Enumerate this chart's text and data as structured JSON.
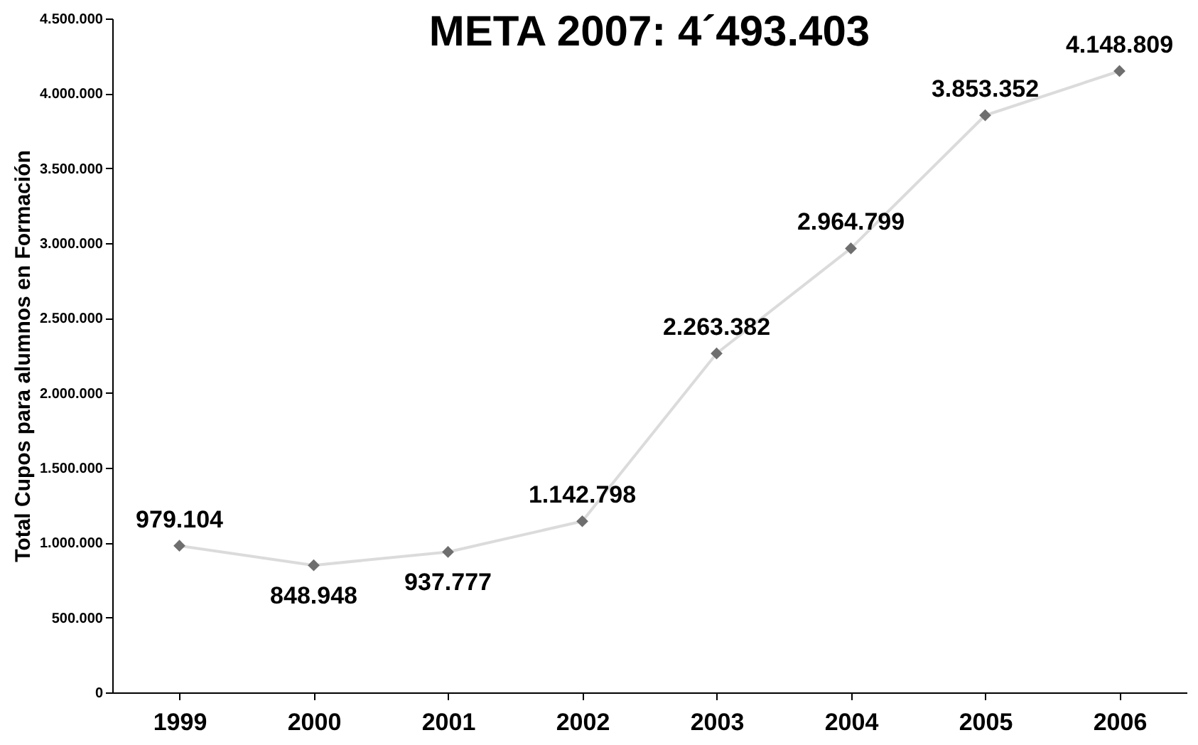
{
  "chart_data": {
    "type": "line",
    "title": "META 2007: 4´493.403",
    "ylabel": "Total Cupos para alumnos en Formación",
    "categories": [
      "1999",
      "2000",
      "2001",
      "2002",
      "2003",
      "2004",
      "2005",
      "2006"
    ],
    "series": [
      {
        "color": "#6e6e6e",
        "values": [
          979104,
          848948,
          937777,
          1142798,
          2263382,
          2964799,
          3853352,
          4148809
        ],
        "value_labels": [
          "979.104",
          "848.948",
          "937.777",
          "1.142.798",
          "2.263.382",
          "2.964.799",
          "3.853.352",
          "4.148.809"
        ]
      }
    ],
    "ylim": [
      0,
      4500000
    ],
    "yticks": [
      {
        "value": 0,
        "label": "0"
      },
      {
        "value": 500000,
        "label": "500.000"
      },
      {
        "value": 1000000,
        "label": "1.000.000"
      },
      {
        "value": 1500000,
        "label": "1.500.000"
      },
      {
        "value": 2000000,
        "label": "2.000.000"
      },
      {
        "value": 2500000,
        "label": "2.500.000"
      },
      {
        "value": 3000000,
        "label": "3.000.000"
      },
      {
        "value": 3500000,
        "label": "3.500.000"
      },
      {
        "value": 4000000,
        "label": "4.000.000"
      },
      {
        "value": 4500000,
        "label": "4.500.000"
      }
    ],
    "grid": false,
    "marker": "diamond",
    "line_style": "solid"
  }
}
